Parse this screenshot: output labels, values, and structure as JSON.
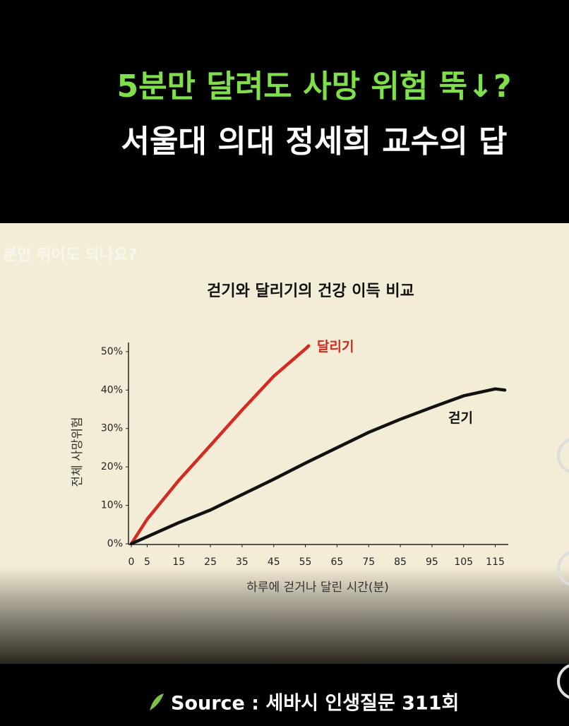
{
  "header": {
    "line1": "5분만 달려도 사망 위험 뚝↓?",
    "line2": "서울대 의대 정세희 교수의 답"
  },
  "faded_caption": "분만 뛰어도 되나요?",
  "source": "Source : 세바시 인생질문 311회",
  "chart_data": {
    "type": "line",
    "title": "걷기와 달리기의 건강 이득 비교",
    "xlabel": "하루에 걷거나 달린 시간(분)",
    "ylabel": "전체 사망위험",
    "xlim": [
      0,
      118
    ],
    "ylim": [
      0,
      52
    ],
    "xticks": [
      0,
      5,
      15,
      25,
      35,
      45,
      55,
      65,
      75,
      85,
      95,
      105,
      115
    ],
    "yticks": [
      {
        "value": 0,
        "label": "0%"
      },
      {
        "value": 10,
        "label": "10%"
      },
      {
        "value": 20,
        "label": "20%"
      },
      {
        "value": 30,
        "label": "30%"
      },
      {
        "value": 40,
        "label": "40%"
      },
      {
        "value": 50,
        "label": "50%"
      }
    ],
    "series": [
      {
        "name": "달리기",
        "color": "#d42a22",
        "x": [
          0,
          5,
          15,
          25,
          35,
          45,
          55,
          56
        ],
        "values": [
          0,
          6.4,
          16.5,
          25.6,
          34.8,
          43.6,
          50.7,
          51.5
        ]
      },
      {
        "name": "걷기",
        "color": "#111111",
        "x": [
          0,
          15,
          25,
          35,
          45,
          55,
          65,
          75,
          85,
          95,
          105,
          115,
          118
        ],
        "values": [
          0,
          5.5,
          8.8,
          12.8,
          16.8,
          21,
          25,
          29,
          32.4,
          35.5,
          38.5,
          40.3,
          40
        ]
      }
    ]
  }
}
